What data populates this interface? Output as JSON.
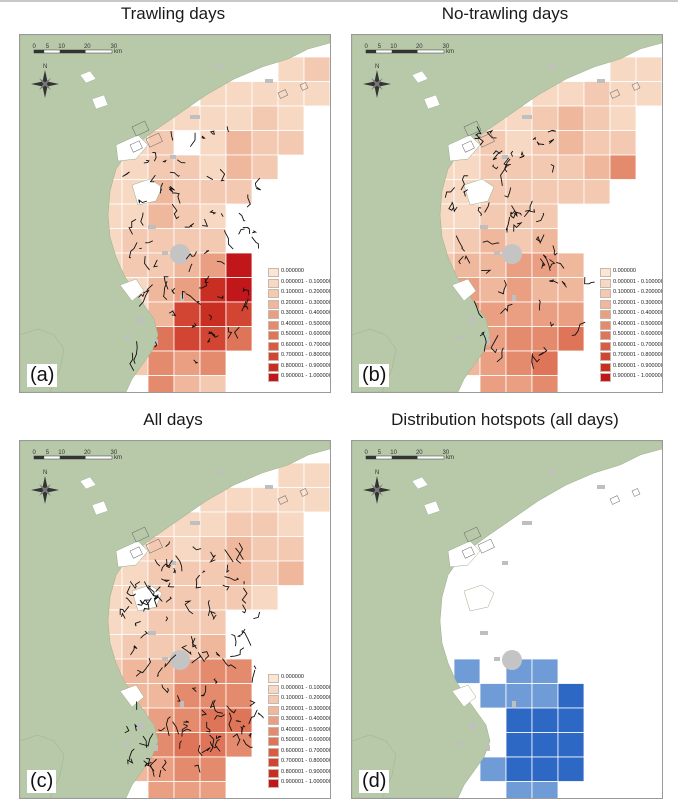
{
  "panels": [
    {
      "id": "a",
      "title": "Trawling days",
      "label": "(a)",
      "mode": "trawl",
      "legend": true,
      "tracks": "a"
    },
    {
      "id": "b",
      "title": "No-trawling days",
      "label": "(b)",
      "mode": "notrawl",
      "legend": true,
      "tracks": "b"
    },
    {
      "id": "c",
      "title": "All days",
      "label": "(c)",
      "mode": "all",
      "legend": true,
      "tracks": "c"
    },
    {
      "id": "d",
      "title": "Distribution hotspots (all days)",
      "label": "(d)",
      "mode": "hotspot",
      "legend": false,
      "tracks": "none"
    }
  ],
  "scalebar": {
    "labels": [
      "0",
      "5",
      "10",
      "20",
      "30"
    ],
    "unit": "km"
  },
  "north_label": "N",
  "legend": {
    "classes": [
      {
        "label": "0.000000",
        "color": "#fbe6d6"
      },
      {
        "label": "0.000001 - 0.100000",
        "color": "#f7d8c3"
      },
      {
        "label": "0.100001 - 0.200000",
        "color": "#f3c9b1"
      },
      {
        "label": "0.200001 - 0.300000",
        "color": "#efb89d"
      },
      {
        "label": "0.300001 - 0.400000",
        "color": "#ea9f82"
      },
      {
        "label": "0.400001 - 0.500000",
        "color": "#e48a6d"
      },
      {
        "label": "0.500001 - 0.600000",
        "color": "#de7458"
      },
      {
        "label": "0.600001 - 0.700000",
        "color": "#d85c44"
      },
      {
        "label": "0.700001 - 0.800000",
        "color": "#d14532"
      },
      {
        "label": "0.800001 - 0.900000",
        "color": "#c92e22"
      },
      {
        "label": "0.900001 - 1.000000",
        "color": "#c1161a"
      }
    ]
  },
  "colors": {
    "land": "#b8c9a9",
    "sea": "#ffffff",
    "hotspot_light": "#6f9bd6",
    "hotspot_dark": "#2d68c4",
    "island": "#bfbfbf"
  },
  "grid_classes": {
    "trawl": [
      [
        0,
        0,
        0,
        0,
        0,
        0,
        0,
        0,
        0,
        1,
        2,
        0
      ],
      [
        0,
        0,
        0,
        0,
        0,
        0,
        1,
        1,
        1,
        1,
        1,
        0
      ],
      [
        0,
        0,
        0,
        0,
        1,
        1,
        1,
        1,
        2,
        1,
        0,
        0
      ],
      [
        0,
        0,
        0,
        1,
        2,
        0,
        1,
        3,
        2,
        2,
        0,
        0
      ],
      [
        0,
        0,
        1,
        1,
        2,
        2,
        1,
        3,
        2,
        0,
        0,
        0
      ],
      [
        0,
        0,
        1,
        1,
        3,
        2,
        2,
        2,
        0,
        0,
        0,
        0
      ],
      [
        0,
        0,
        1,
        1,
        3,
        2,
        1,
        0,
        0,
        0,
        0,
        0
      ],
      [
        0,
        0,
        1,
        2,
        2,
        2,
        2,
        0,
        0,
        0,
        0,
        0
      ],
      [
        0,
        0,
        1,
        2,
        2,
        3,
        4,
        10,
        0,
        0,
        0,
        0
      ],
      [
        0,
        0,
        0,
        1,
        3,
        4,
        9,
        10,
        0,
        0,
        0,
        0
      ],
      [
        0,
        0,
        0,
        1,
        3,
        8,
        9,
        8,
        0,
        0,
        0,
        0
      ],
      [
        0,
        0,
        0,
        2,
        6,
        8,
        8,
        6,
        0,
        0,
        0,
        0
      ],
      [
        0,
        0,
        0,
        2,
        5,
        4,
        5,
        0,
        0,
        0,
        0,
        0
      ],
      [
        0,
        0,
        0,
        0,
        5,
        3,
        2,
        0,
        0,
        0,
        0,
        0
      ]
    ],
    "notrawl": [
      [
        0,
        0,
        0,
        0,
        0,
        0,
        0,
        0,
        0,
        1,
        1,
        0
      ],
      [
        0,
        0,
        0,
        0,
        0,
        0,
        1,
        1,
        2,
        1,
        1,
        0
      ],
      [
        0,
        0,
        0,
        0,
        1,
        1,
        2,
        3,
        2,
        1,
        0,
        0
      ],
      [
        0,
        0,
        0,
        1,
        2,
        1,
        2,
        3,
        2,
        2,
        0,
        0
      ],
      [
        0,
        0,
        1,
        1,
        2,
        2,
        2,
        2,
        3,
        5,
        0,
        0
      ],
      [
        0,
        0,
        1,
        1,
        2,
        2,
        2,
        2,
        2,
        0,
        0,
        0
      ],
      [
        0,
        0,
        1,
        1,
        2,
        2,
        2,
        0,
        0,
        0,
        0,
        0
      ],
      [
        0,
        0,
        1,
        2,
        3,
        2,
        3,
        0,
        0,
        0,
        0,
        0
      ],
      [
        0,
        0,
        2,
        3,
        3,
        4,
        4,
        3,
        0,
        0,
        0,
        0
      ],
      [
        0,
        0,
        0,
        4,
        3,
        4,
        3,
        3,
        0,
        0,
        0,
        0
      ],
      [
        0,
        0,
        0,
        5,
        4,
        4,
        4,
        4,
        0,
        0,
        0,
        0
      ],
      [
        0,
        0,
        0,
        4,
        4,
        5,
        5,
        6,
        0,
        0,
        0,
        0
      ],
      [
        0,
        0,
        0,
        3,
        4,
        5,
        6,
        0,
        0,
        0,
        0,
        0
      ],
      [
        0,
        0,
        0,
        0,
        4,
        4,
        5,
        0,
        0,
        0,
        0,
        0
      ]
    ],
    "all": [
      [
        0,
        0,
        0,
        0,
        0,
        0,
        0,
        0,
        0,
        1,
        1,
        0
      ],
      [
        0,
        0,
        0,
        0,
        0,
        0,
        1,
        1,
        1,
        1,
        1,
        0
      ],
      [
        0,
        0,
        0,
        0,
        1,
        1,
        1,
        2,
        2,
        1,
        0,
        0
      ],
      [
        0,
        0,
        0,
        1,
        2,
        1,
        2,
        3,
        2,
        2,
        0,
        0
      ],
      [
        0,
        0,
        1,
        1,
        2,
        2,
        2,
        3,
        2,
        3,
        0,
        0
      ],
      [
        0,
        0,
        1,
        1,
        2,
        2,
        2,
        2,
        1,
        0,
        0,
        0
      ],
      [
        0,
        0,
        1,
        1,
        2,
        2,
        2,
        0,
        0,
        0,
        0,
        0
      ],
      [
        0,
        0,
        1,
        2,
        2,
        2,
        3,
        0,
        0,
        0,
        0,
        0
      ],
      [
        0,
        0,
        2,
        3,
        3,
        4,
        5,
        5,
        0,
        0,
        0,
        0
      ],
      [
        0,
        0,
        0,
        3,
        3,
        5,
        5,
        5,
        0,
        0,
        0,
        0
      ],
      [
        0,
        0,
        0,
        3,
        4,
        5,
        6,
        6,
        0,
        0,
        0,
        0
      ],
      [
        0,
        0,
        0,
        3,
        5,
        6,
        6,
        5,
        0,
        0,
        0,
        0
      ],
      [
        0,
        0,
        0,
        3,
        4,
        5,
        5,
        0,
        0,
        0,
        0,
        0
      ],
      [
        0,
        0,
        0,
        0,
        4,
        4,
        4,
        0,
        0,
        0,
        0,
        0
      ]
    ],
    "hotspot": [
      [
        0,
        0,
        0,
        0,
        0,
        0,
        0,
        0,
        0,
        0,
        0,
        0
      ],
      [
        0,
        0,
        0,
        0,
        0,
        0,
        0,
        0,
        0,
        0,
        0,
        0
      ],
      [
        0,
        0,
        0,
        0,
        0,
        0,
        0,
        0,
        0,
        0,
        0,
        0
      ],
      [
        0,
        0,
        0,
        0,
        0,
        0,
        0,
        0,
        0,
        0,
        0,
        0
      ],
      [
        0,
        0,
        0,
        0,
        0,
        0,
        0,
        0,
        0,
        0,
        0,
        0
      ],
      [
        0,
        0,
        0,
        0,
        0,
        0,
        0,
        0,
        0,
        0,
        0,
        0
      ],
      [
        0,
        0,
        0,
        0,
        0,
        0,
        0,
        0,
        0,
        0,
        0,
        0
      ],
      [
        0,
        0,
        0,
        0,
        0,
        0,
        0,
        0,
        0,
        0,
        0,
        0
      ],
      [
        0,
        0,
        0,
        1,
        0,
        1,
        1,
        0,
        0,
        0,
        0,
        0
      ],
      [
        0,
        0,
        0,
        0,
        1,
        1,
        1,
        2,
        0,
        0,
        0,
        0
      ],
      [
        0,
        0,
        0,
        0,
        0,
        2,
        2,
        2,
        0,
        0,
        0,
        0
      ],
      [
        0,
        0,
        0,
        0,
        0,
        2,
        2,
        2,
        0,
        0,
        0,
        0
      ],
      [
        0,
        0,
        0,
        0,
        1,
        2,
        2,
        2,
        0,
        0,
        0,
        0
      ],
      [
        0,
        0,
        0,
        0,
        0,
        1,
        1,
        0,
        0,
        0,
        0,
        0
      ]
    ]
  }
}
